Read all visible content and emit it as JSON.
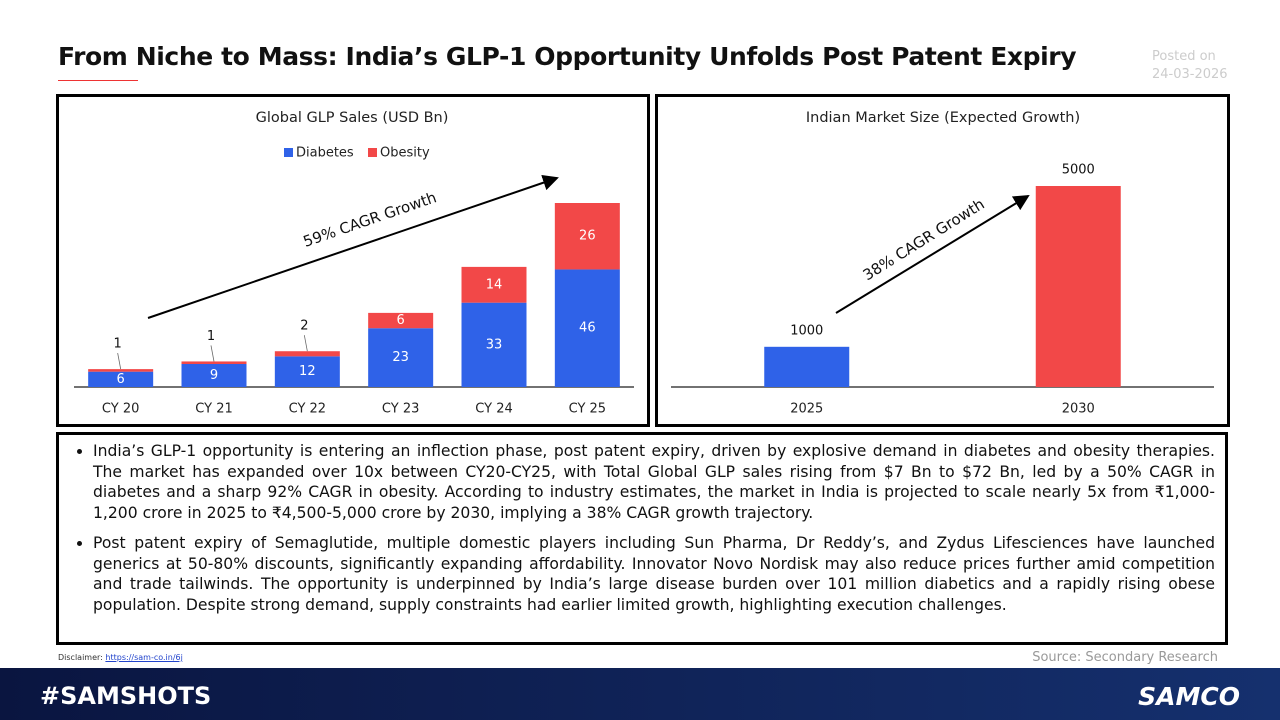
{
  "header": {
    "title": "From Niche to Mass: India’s GLP-1 Opportunity Unfolds Post Patent Expiry",
    "posted_label": "Posted on",
    "posted_date": "24-03-2026"
  },
  "chart_data": [
    {
      "type": "bar",
      "stacked": true,
      "title": "Global GLP Sales (USD Bn)",
      "categories": [
        "CY 20",
        "CY 21",
        "CY 22",
        "CY 23",
        "CY 24",
        "CY 25"
      ],
      "series": [
        {
          "name": "Diabetes",
          "color": "#2f62e8",
          "values": [
            6,
            9,
            12,
            23,
            33,
            46
          ]
        },
        {
          "name": "Obesity",
          "color": "#f24848",
          "values": [
            1,
            1,
            2,
            6,
            14,
            26
          ]
        }
      ],
      "annotation": "59% CAGR Growth"
    },
    {
      "type": "bar",
      "title": "Indian Market Size (Expected Growth)",
      "categories": [
        "2025",
        "2030"
      ],
      "values": [
        1000,
        5000
      ],
      "colors": [
        "#2f62e8",
        "#f24848"
      ],
      "annotation": "38% CAGR Growth"
    }
  ],
  "bullets": [
    "India’s GLP-1 opportunity is entering an inflection phase, post patent expiry, driven by explosive demand in diabetes and obesity therapies. The market has expanded over 10x between CY20-CY25, with Total Global GLP sales rising from $7 Bn to $72 Bn, led by a 50% CAGR in diabetes and a sharp 92% CAGR in obesity. According to industry estimates, the market in India is projected to scale nearly 5x from ₹1,000-1,200 crore in 2025 to ₹4,500-5,000 crore by 2030, implying a 38% CAGR growth trajectory.",
    "Post patent expiry of Semaglutide, multiple domestic players including Sun Pharma, Dr Reddy’s, and Zydus Lifesciences have launched generics at 50-80% discounts, significantly expanding affordability. Innovator Novo Nordisk may also reduce prices further amid competition and trade tailwinds. The opportunity is underpinned by India’s large disease burden over 101 million diabetics and a rapidly rising obese population. Despite strong demand, supply constraints had earlier limited growth, highlighting execution challenges."
  ],
  "footer": {
    "disclaimer_label": "Disclaimer:",
    "disclaimer_link": "https://sam-co.in/6j",
    "source": "Source: Secondary Research",
    "hashtag": "#SAMSHOTS",
    "brand": "SAMCO"
  }
}
